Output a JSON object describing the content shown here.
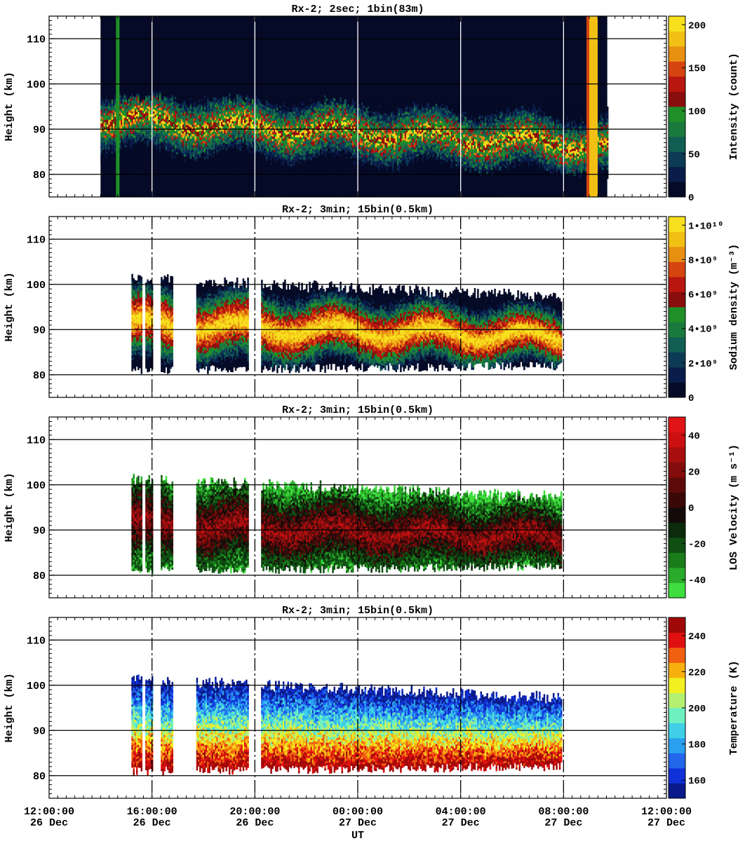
{
  "chart_data": [
    {
      "type": "heatmap",
      "title": "Rx-2;  2sec; 1bin(83m)",
      "xlabel": "",
      "ylabel": "Height (km)",
      "ylim": [
        75,
        115
      ],
      "yticks": [
        80,
        90,
        100,
        110
      ],
      "xlim_hours": [
        12,
        36
      ],
      "colorbar": {
        "label": "Intensity (count)",
        "min": 0,
        "max": 210,
        "ticks": [
          "0",
          "50",
          "100",
          "150",
          "200"
        ],
        "tick_values": [
          0,
          50,
          100,
          150,
          200
        ],
        "colors": [
          "#050a26",
          "#0a1c4a",
          "#0d3b56",
          "#115e52",
          "#1a7a3d",
          "#1f9028",
          "#8a0d0d",
          "#b8160f",
          "#d64510",
          "#e88f12",
          "#f2c015",
          "#f8e01e"
        ]
      },
      "data_extent_hours": [
        14.0,
        33.7
      ],
      "layer": {
        "lower_km_start": 82,
        "lower_km_end": 80,
        "upper_km_start": 97,
        "upper_km_end": 95,
        "peak_km_start": 92,
        "peak_km_end": 86
      }
    },
    {
      "type": "heatmap",
      "title": "Rx-2; 3min; 15bin(0.5km)",
      "xlabel": "",
      "ylabel": "Height (km)",
      "ylim": [
        75,
        115
      ],
      "yticks": [
        80,
        90,
        100,
        110
      ],
      "xlim_hours": [
        12,
        36
      ],
      "colorbar": {
        "label": "Sodium density (m⁻³)",
        "min": 0,
        "max": 10500000000.0,
        "ticks": [
          "0",
          "2•10⁹",
          "4•10⁹",
          "6•10⁹",
          "8•10⁹",
          "1•10¹⁰"
        ],
        "tick_values": [
          0,
          2000000000.0,
          4000000000.0,
          6000000000.0,
          8000000000.0,
          10000000000.0
        ],
        "colors": [
          "#050a26",
          "#0a1c4a",
          "#0d3b56",
          "#115e52",
          "#1a7a3d",
          "#1f9028",
          "#8a0d0d",
          "#b8160f",
          "#d64510",
          "#e88f12",
          "#f2c015",
          "#f8e01e"
        ]
      },
      "data_extent_hours": [
        15.2,
        31.9
      ],
      "gaps_hours": [
        [
          15.6,
          15.7
        ],
        [
          16.0,
          16.3
        ],
        [
          16.8,
          17.7
        ],
        [
          19.7,
          20.2
        ]
      ],
      "layer": {
        "lower_km_start": 81,
        "lower_km_end": 82,
        "upper_km_start": 101,
        "upper_km_end": 97,
        "peak_km_start": 91,
        "peak_km_end": 88
      }
    },
    {
      "type": "heatmap",
      "title": "Rx-2; 3min; 15bin(0.5km)",
      "xlabel": "",
      "ylabel": "Height (km)",
      "ylim": [
        75,
        115
      ],
      "yticks": [
        80,
        90,
        100,
        110
      ],
      "xlim_hours": [
        12,
        36
      ],
      "colorbar": {
        "label": "LOS Velocity (m s⁻¹)",
        "min": -50,
        "max": 50,
        "ticks": [
          "-40",
          "-20",
          "0",
          "20",
          "40"
        ],
        "tick_values": [
          -40,
          -20,
          0,
          20,
          40
        ],
        "colors": [
          "#3dde3d",
          "#2aab2a",
          "#1a7d1a",
          "#0f4f12",
          "#0c2a0c",
          "#140a08",
          "#3a0807",
          "#5e0a0a",
          "#850c0c",
          "#a80e0e",
          "#cc1010",
          "#e01414"
        ]
      },
      "data_extent_hours": [
        15.2,
        31.9
      ],
      "gaps_hours": [
        [
          15.6,
          15.7
        ],
        [
          16.0,
          16.3
        ],
        [
          16.8,
          17.7
        ],
        [
          19.7,
          20.2
        ]
      ],
      "layer": {
        "lower_km_start": 81,
        "lower_km_end": 82,
        "upper_km_start": 101,
        "upper_km_end": 97,
        "peak_km_start": 91,
        "peak_km_end": 88
      }
    },
    {
      "type": "heatmap",
      "title": "Rx-2; 3min; 15bin(0.5km)",
      "xlabel": "UT",
      "ylabel": "Height (km)",
      "ylim": [
        75,
        115
      ],
      "yticks": [
        80,
        90,
        100,
        110
      ],
      "xlim_hours": [
        12,
        36
      ],
      "xticks": [
        {
          "time": "12:00:00",
          "date": "26 Dec",
          "hour": 12
        },
        {
          "time": "16:00:00",
          "date": "26 Dec",
          "hour": 16
        },
        {
          "time": "20:00:00",
          "date": "26 Dec",
          "hour": 20
        },
        {
          "time": "00:00:00",
          "date": "27 Dec",
          "hour": 24
        },
        {
          "time": "04:00:00",
          "date": "27 Dec",
          "hour": 28
        },
        {
          "time": "08:00:00",
          "date": "27 Dec",
          "hour": 32
        },
        {
          "time": "12:00:00",
          "date": "27 Dec",
          "hour": 36
        }
      ],
      "colorbar": {
        "label": "Temperature (K)",
        "min": 150,
        "max": 250,
        "ticks": [
          "160",
          "180",
          "200",
          "220",
          "240"
        ],
        "tick_values": [
          160,
          180,
          200,
          220,
          240
        ],
        "colors": [
          "#0a1a8a",
          "#1030d8",
          "#2266ea",
          "#2aa0f0",
          "#3fd0e8",
          "#6ef0c0",
          "#b4f070",
          "#f2f020",
          "#f8b010",
          "#f06010",
          "#e01010",
          "#a00808"
        ]
      },
      "data_extent_hours": [
        15.2,
        31.9
      ],
      "gaps_hours": [
        [
          15.6,
          15.7
        ],
        [
          16.0,
          16.3
        ],
        [
          16.8,
          17.7
        ],
        [
          19.7,
          20.2
        ]
      ],
      "layer": {
        "lower_km_start": 81,
        "lower_km_end": 82,
        "upper_km_start": 101,
        "upper_km_end": 97,
        "peak_km_start": 91,
        "peak_km_end": 88
      }
    }
  ]
}
